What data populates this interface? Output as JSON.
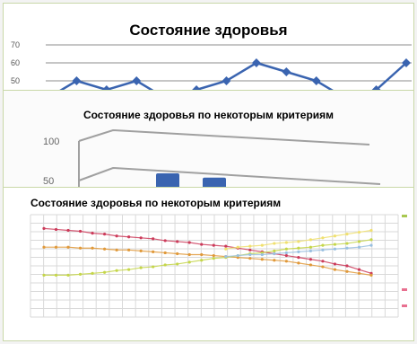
{
  "chart_data": [
    {
      "type": "line",
      "title": "Состояние здоровья",
      "yticks": [
        "70",
        "60",
        "50"
      ],
      "ylim": [
        40,
        70
      ],
      "series": [
        {
          "values": [
            40,
            50,
            45,
            50,
            40,
            45,
            50,
            60,
            55,
            50,
            40,
            45,
            60
          ],
          "color": "#3a64b0"
        }
      ]
    },
    {
      "type": "bar",
      "title": "Состояние здоровья по некоторым критериям",
      "yticks": [
        "100",
        "50"
      ],
      "ylim": [
        0,
        100
      ],
      "series": [
        {
          "values": [
            45,
            42
          ],
          "color": "#3a64b0"
        }
      ]
    },
    {
      "type": "line",
      "title": "Состояние здоровья по некоторым критериям",
      "ylim": [
        0,
        100
      ],
      "series": [
        {
          "values": [
            90,
            89,
            88,
            87,
            85,
            84,
            82,
            81,
            80,
            79,
            77,
            76,
            75,
            73,
            72,
            71,
            69,
            67,
            65,
            63,
            61,
            59,
            57,
            55,
            52,
            50,
            46,
            42
          ],
          "color": "#cc3b5a"
        },
        {
          "values": [
            70,
            70,
            70,
            69,
            69,
            68,
            67,
            67,
            66,
            65,
            64,
            63,
            62,
            62,
            61,
            60,
            59,
            58,
            57,
            56,
            55,
            53,
            51,
            49,
            46,
            44,
            42,
            40
          ],
          "color": "#e0993a"
        },
        {
          "values": [
            40,
            40,
            40,
            41,
            42,
            43,
            45,
            46,
            48,
            49,
            51,
            52,
            54,
            56,
            58,
            59,
            61,
            63,
            64,
            66,
            68,
            69,
            70,
            72,
            73,
            74,
            76,
            78
          ],
          "color": "#c5d64a"
        },
        {
          "values": [
            null,
            null,
            null,
            null,
            null,
            null,
            null,
            null,
            null,
            null,
            null,
            null,
            null,
            null,
            null,
            68,
            70,
            71,
            72,
            74,
            75,
            76,
            78,
            80,
            82,
            84,
            86,
            88
          ],
          "color": "#f0e070"
        },
        {
          "values": [
            null,
            null,
            null,
            null,
            null,
            null,
            null,
            null,
            null,
            null,
            null,
            null,
            null,
            null,
            null,
            60,
            61,
            62,
            62,
            63,
            64,
            65,
            66,
            67,
            68,
            69,
            70,
            72
          ],
          "color": "#9ac0e0"
        }
      ],
      "colors": {
        "pink": "#e87090",
        "green": "#a8c850"
      }
    }
  ]
}
